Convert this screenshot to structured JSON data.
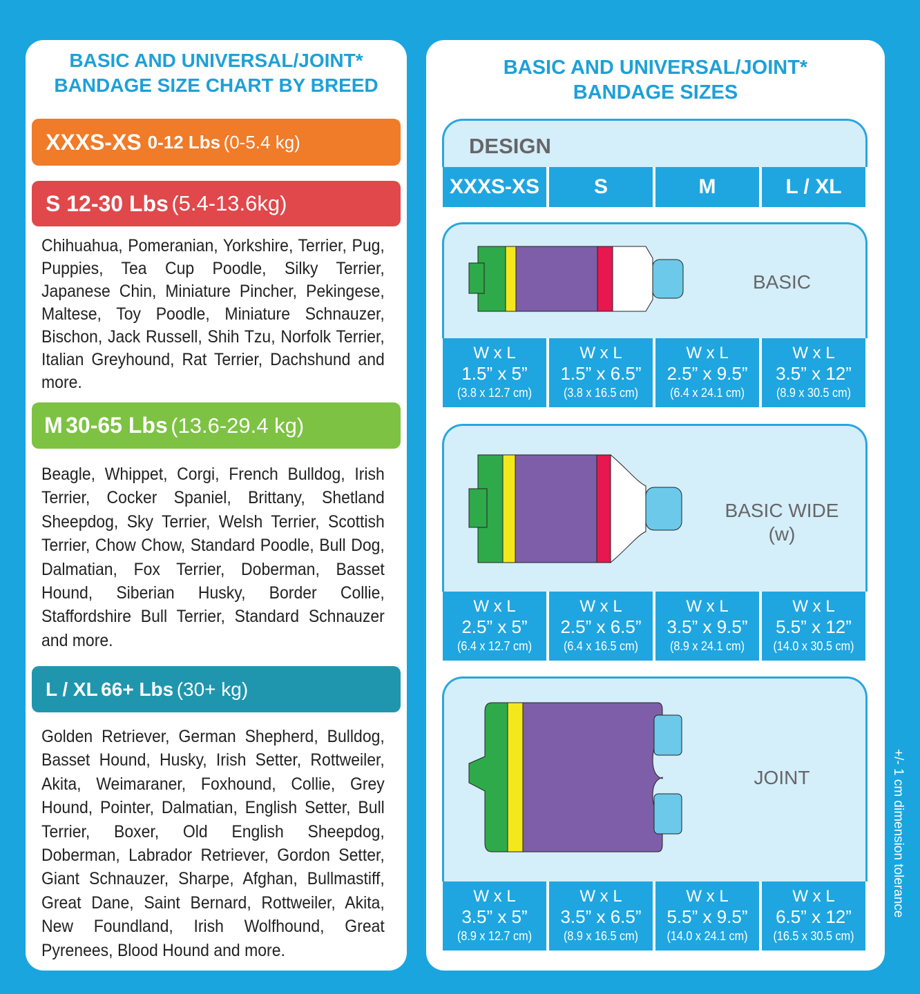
{
  "left": {
    "title": [
      "BASIC AND UNIVERSAL/JOINT*",
      "BANDAGE SIZE CHART BY BREED"
    ],
    "groups": [
      {
        "size": "XXXS-XS",
        "lbs": "0-12 Lbs",
        "kg": "(0-5.4 kg)",
        "color": "#f07b28",
        "breeds": ""
      },
      {
        "size": "S",
        "lbs": "12-30 Lbs",
        "kg": "(5.4-13.6kg)",
        "color": "#e0484b",
        "breeds": "Chihuahua, Pomeranian, Yorkshire, Terrier, Pug, Puppies, Tea Cup Poodle, Silky Terrier, Japanese Chin, Miniature Pincher, Pekingese, Maltese, Toy Poodle, Miniature Schnauzer, Bischon, Jack Russell, Shih Tzu, Norfolk Terrier, Italian Greyhound, Rat Terrier, Dachshund and more."
      },
      {
        "size": "M",
        "lbs": "30-65 Lbs",
        "kg": "(13.6-29.4 kg)",
        "color": "#7dc242",
        "breeds": "Beagle, Whippet, Corgi, French Bulldog, Irish Terrier, Cocker Spaniel, Brittany, Shetland Sheepdog, Sky Terrier, Welsh Terrier, Scottish Terrier, Chow Chow, Standard Poodle, Bull Dog, Dalmatian, Fox Terrier, Doberman, Basset Hound, Siberian Husky, Border Collie, Staffordshire Bull Terrier, Standard Schnauzer and more."
      },
      {
        "size": "L / XL",
        "lbs": "66+ Lbs",
        "kg": "(30+ kg)",
        "color": "#1f96ae",
        "breeds": "Golden Retriever, German Shepherd, Bulldog, Basset Hound, Husky, Irish Setter, Rottweiler, Akita, Weimaraner, Foxhound, Collie, Grey Hound, Pointer, Dalmatian, English Setter, Bull Terrier, Boxer, Old English Sheepdog, Doberman, Labrador Retriever, Gordon Setter, Giant Schnauzer, Sharpe, Afghan, Bullmastiff, Great Dane, Saint Bernard, Rottweiler, Akita, New Foundland, Irish Wolfhound, Great Pyrenees, Blood Hound and more."
      }
    ]
  },
  "right": {
    "title": [
      "BASIC AND UNIVERSAL/JOINT*",
      "BANDAGE SIZES"
    ],
    "design_label": "DESIGN",
    "size_headers": [
      "XXXS-XS",
      "S",
      "M",
      "L / XL"
    ],
    "wl_label": "W x L",
    "types": [
      {
        "name": "BASIC",
        "sub": "",
        "sizes": [
          [
            "1.5” x 5”",
            "(3.8 x 12.7 cm)"
          ],
          [
            "1.5” x 6.5”",
            "(3.8 x 16.5 cm)"
          ],
          [
            "2.5” x 9.5”",
            "(6.4 x 24.1 cm)"
          ],
          [
            "3.5” x 12”",
            "(8.9 x 30.5 cm)"
          ]
        ]
      },
      {
        "name": "BASIC WIDE",
        "sub": "(w)",
        "sizes": [
          [
            "2.5” x 5”",
            "(6.4 x 12.7 cm)"
          ],
          [
            "2.5” x 6.5”",
            "(6.4 x 16.5 cm)"
          ],
          [
            "3.5” x 9.5”",
            "(8.9 x 24.1 cm)"
          ],
          [
            "5.5” x 12”",
            "(14.0 x 30.5 cm)"
          ]
        ]
      },
      {
        "name": "JOINT",
        "sub": "",
        "sizes": [
          [
            "3.5” x 5”",
            "(8.9 x 12.7 cm)"
          ],
          [
            "3.5” x 6.5”",
            "(8.9 x 16.5 cm)"
          ],
          [
            "5.5” x 9.5”",
            "(14.0 x 24.1 cm)"
          ],
          [
            "6.5” x 12”",
            "(16.5 x 30.5 cm)"
          ]
        ]
      }
    ],
    "tolerance": "+/- 1 cm dimension tolerance"
  }
}
